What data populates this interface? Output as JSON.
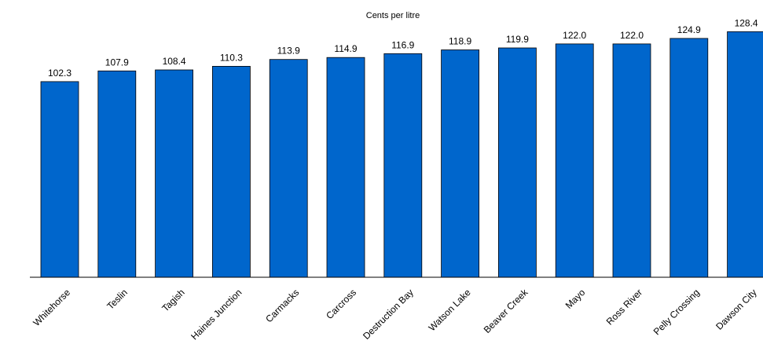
{
  "chart_data": {
    "type": "bar",
    "title": "Cents per litre",
    "xlabel": "",
    "ylabel": "",
    "categories": [
      "Whitehorse",
      "Teslin",
      "Tagish",
      "Haines Junction",
      "Carmacks",
      "Carcross",
      "Destruction Bay",
      "Watson Lake",
      "Beaver Creek",
      "Mayo",
      "Ross River",
      "Pelly Crossing",
      "Dawson City"
    ],
    "values": [
      102.3,
      107.9,
      108.4,
      110.3,
      113.9,
      114.9,
      116.9,
      118.9,
      119.9,
      122.0,
      122.0,
      124.9,
      128.4
    ],
    "value_labels": [
      "102.3",
      "107.9",
      "108.4",
      "110.3",
      "113.9",
      "114.9",
      "116.9",
      "118.9",
      "119.9",
      "122.0",
      "122.0",
      "124.9",
      "128.4"
    ],
    "ylim": [
      0,
      130
    ],
    "grid": false,
    "legend": "none",
    "bar_color": "#0066CC",
    "axis_color": "#000000"
  }
}
